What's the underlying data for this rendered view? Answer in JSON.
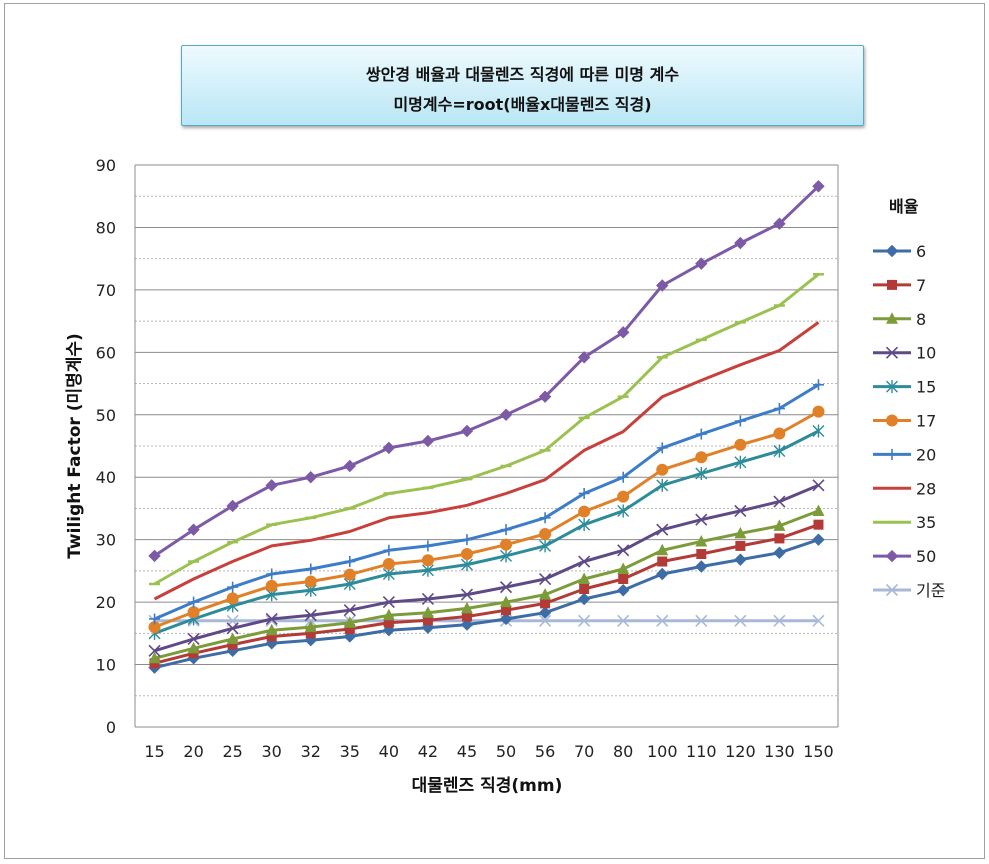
{
  "chart_data": {
    "type": "line",
    "title": "쌍안경 배율과 대물렌즈 직경에 따른 미명 계수",
    "subtitle": "미명계수=root(배율x대물렌즈 직경)",
    "xlabel": "대물렌즈 직경(mm)",
    "ylabel": "Twilight Factor (미명계수)",
    "legend_title": "배율",
    "legend_position": "right",
    "grid": true,
    "ylim": [
      0,
      90
    ],
    "yticks": [
      0,
      10,
      20,
      30,
      40,
      50,
      60,
      70,
      80,
      90
    ],
    "categories": [
      "15",
      "20",
      "25",
      "30",
      "32",
      "35",
      "40",
      "42",
      "45",
      "50",
      "56",
      "70",
      "80",
      "100",
      "110",
      "120",
      "130",
      "150"
    ],
    "series": [
      {
        "name": "6",
        "color": "#3e6da6",
        "marker": "diamond",
        "values": [
          9.5,
          11.0,
          12.2,
          13.4,
          13.9,
          14.5,
          15.5,
          15.9,
          16.4,
          17.3,
          18.3,
          20.5,
          21.9,
          24.5,
          25.7,
          26.8,
          27.9,
          30.0
        ]
      },
      {
        "name": "7",
        "color": "#b23b38",
        "marker": "square",
        "values": [
          10.2,
          11.8,
          13.2,
          14.5,
          15.0,
          15.7,
          16.7,
          17.1,
          17.7,
          18.7,
          19.8,
          22.1,
          23.7,
          26.5,
          27.7,
          29.0,
          30.2,
          32.4
        ]
      },
      {
        "name": "8",
        "color": "#7c9c3a",
        "marker": "triangle",
        "values": [
          11.0,
          12.6,
          14.1,
          15.5,
          16.0,
          16.7,
          17.9,
          18.3,
          19.0,
          20.0,
          21.2,
          23.7,
          25.3,
          28.3,
          29.7,
          31.0,
          32.2,
          34.6
        ]
      },
      {
        "name": "10",
        "color": "#5f4a87",
        "marker": "x",
        "values": [
          12.2,
          14.1,
          15.8,
          17.3,
          17.9,
          18.7,
          20.0,
          20.5,
          21.2,
          22.4,
          23.7,
          26.5,
          28.3,
          31.6,
          33.2,
          34.6,
          36.1,
          38.7
        ]
      },
      {
        "name": "15",
        "color": "#2e8b9a",
        "marker": "star",
        "values": [
          15.0,
          17.3,
          19.4,
          21.2,
          21.9,
          22.9,
          24.5,
          25.1,
          26.0,
          27.4,
          29.0,
          32.4,
          34.6,
          38.7,
          40.6,
          42.4,
          44.2,
          47.4
        ]
      },
      {
        "name": "17",
        "color": "#e0812a",
        "marker": "circle",
        "values": [
          16.0,
          18.4,
          20.6,
          22.6,
          23.3,
          24.4,
          26.1,
          26.7,
          27.7,
          29.2,
          30.9,
          34.5,
          36.9,
          41.2,
          43.2,
          45.2,
          47.0,
          50.5
        ]
      },
      {
        "name": "20",
        "color": "#3d7cc9",
        "marker": "plus",
        "values": [
          17.3,
          20.0,
          22.4,
          24.5,
          25.3,
          26.5,
          28.3,
          29.0,
          30.0,
          31.6,
          33.5,
          37.4,
          40.0,
          44.7,
          46.9,
          49.0,
          51.0,
          54.8
        ]
      },
      {
        "name": "28",
        "color": "#c8403c",
        "marker": "none",
        "values": [
          20.5,
          23.7,
          26.5,
          29.0,
          29.9,
          31.3,
          33.5,
          34.3,
          35.5,
          37.4,
          39.6,
          44.3,
          47.3,
          52.9,
          55.5,
          58.0,
          60.3,
          64.8
        ]
      },
      {
        "name": "35",
        "color": "#9bc150",
        "marker": "dash",
        "values": [
          22.9,
          26.5,
          29.6,
          32.4,
          33.5,
          35.0,
          37.4,
          38.3,
          39.7,
          41.8,
          44.3,
          49.5,
          52.9,
          59.2,
          62.0,
          64.8,
          67.5,
          72.5
        ]
      },
      {
        "name": "50",
        "color": "#7d5aa6",
        "marker": "diamond",
        "values": [
          27.4,
          31.6,
          35.4,
          38.7,
          40.0,
          41.8,
          44.7,
          45.8,
          47.4,
          50.0,
          52.9,
          59.2,
          63.2,
          70.7,
          74.2,
          77.5,
          80.6,
          86.6
        ]
      },
      {
        "name": "기준",
        "color": "#a8b9d8",
        "marker": "x",
        "values": [
          17,
          17,
          17,
          17,
          17,
          17,
          17,
          17,
          17,
          17,
          17,
          17,
          17,
          17,
          17,
          17,
          17,
          17
        ]
      }
    ]
  }
}
